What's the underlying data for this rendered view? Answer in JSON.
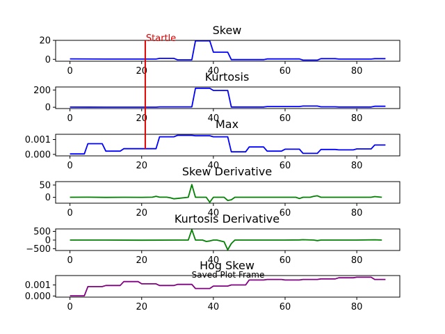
{
  "footer_text": "Saved Plot Frame",
  "colors": {
    "blue": "#0000ff",
    "green": "#008000",
    "purple": "#800080",
    "marker": "#e00000"
  },
  "chart_data": [
    {
      "type": "line",
      "title": "Skew",
      "color": "#0000ff",
      "xlim": [
        -4,
        92
      ],
      "ylim": [
        -2,
        20
      ],
      "xticks": [
        0,
        20,
        40,
        60,
        80
      ],
      "xtick_labels": [
        "0",
        "20",
        "40",
        "60",
        "80"
      ],
      "yticks": [
        0,
        20
      ],
      "ytick_labels": [
        "0",
        "20"
      ],
      "marker_line": {
        "x": 21,
        "label": "Startle"
      },
      "x": [
        0,
        10,
        20,
        24,
        25,
        29,
        30,
        34,
        35,
        39,
        40,
        44,
        45,
        54,
        55,
        64,
        65,
        69,
        70,
        74,
        75,
        84,
        85,
        88
      ],
      "values": [
        0.5,
        0.3,
        0.3,
        0.3,
        1.0,
        1.0,
        -0.5,
        -0.5,
        19.5,
        19.5,
        7.5,
        7.5,
        -0.3,
        -0.3,
        0.4,
        0.4,
        -0.8,
        -0.8,
        0.7,
        0.7,
        0.3,
        0.3,
        0.7,
        0.7
      ]
    },
    {
      "type": "line",
      "title": "Kurtosis",
      "color": "#0000ff",
      "xlim": [
        -4,
        92
      ],
      "ylim": [
        -15,
        235
      ],
      "xticks": [
        0,
        20,
        40,
        60,
        80
      ],
      "xtick_labels": [
        "0",
        "20",
        "40",
        "60",
        "80"
      ],
      "yticks": [
        0,
        200
      ],
      "ytick_labels": [
        "0",
        "200"
      ],
      "marker_line": {
        "x": 21,
        "label": ""
      },
      "x": [
        0,
        10,
        20,
        24,
        25,
        34,
        35,
        39,
        40,
        44,
        45,
        54,
        55,
        64,
        65,
        69,
        70,
        74,
        75,
        84,
        85,
        88
      ],
      "values": [
        2,
        1,
        1,
        1,
        4,
        4,
        220,
        220,
        195,
        195,
        3,
        3,
        8,
        8,
        14,
        14,
        5,
        5,
        3,
        3,
        12,
        12
      ]
    },
    {
      "type": "line",
      "title": "Max",
      "color": "#0000ff",
      "xlim": [
        -4,
        92
      ],
      "ylim": [
        -0.0001,
        0.00135
      ],
      "xticks": [
        0,
        20,
        40,
        60,
        80
      ],
      "xtick_labels": [
        "0",
        "20",
        "40",
        "60",
        "80"
      ],
      "yticks": [
        0,
        0.001
      ],
      "ytick_labels": [
        "0.000",
        "0.001"
      ],
      "marker_line": {
        "x": 21,
        "label": ""
      },
      "x": [
        0,
        4,
        5,
        9,
        10,
        14,
        15,
        24,
        25,
        29,
        30,
        34,
        35,
        39,
        40,
        44,
        45,
        49,
        50,
        54,
        55,
        59,
        60,
        64,
        65,
        69,
        70,
        74,
        75,
        79,
        80,
        84,
        85,
        88
      ],
      "values": [
        3e-05,
        3e-05,
        0.00072,
        0.00072,
        0.00022,
        0.00022,
        0.00038,
        0.00038,
        0.00118,
        0.00118,
        0.00128,
        0.00128,
        0.00125,
        0.00125,
        0.00118,
        0.00118,
        0.00017,
        0.00017,
        0.0005,
        0.0005,
        0.00022,
        0.00022,
        0.00035,
        0.00035,
        7e-05,
        7e-05,
        0.00033,
        0.00033,
        0.0003,
        0.0003,
        0.00037,
        0.00037,
        0.00063,
        0.00063
      ]
    },
    {
      "type": "line",
      "title": "Skew Derivative",
      "color": "#008000",
      "xlim": [
        -4,
        92
      ],
      "ylim": [
        -24,
        64
      ],
      "xticks": [
        0,
        20,
        40,
        60,
        80
      ],
      "xtick_labels": [
        "0",
        "20",
        "40",
        "60",
        "80"
      ],
      "yticks": [
        0,
        50
      ],
      "ytick_labels": [
        "0",
        "50"
      ],
      "marker_line": null,
      "x": [
        0,
        5,
        10,
        15,
        20,
        23,
        24,
        25,
        27,
        28,
        29,
        33,
        34,
        35,
        36,
        38,
        39,
        40,
        41,
        43,
        44,
        45,
        46,
        50,
        55,
        60,
        63,
        64,
        65,
        67,
        68,
        69,
        70,
        75,
        80,
        84,
        85,
        87
      ],
      "values": [
        0,
        0.3,
        -0.3,
        0.2,
        -0.2,
        0.5,
        4,
        0.5,
        0.5,
        -2,
        -6,
        0,
        52,
        0,
        0,
        0,
        -20,
        0,
        0,
        0,
        -13,
        -10,
        0,
        0,
        0,
        0,
        0,
        -5,
        0,
        0,
        4,
        6,
        0,
        0,
        0,
        0,
        3,
        0
      ]
    },
    {
      "type": "line",
      "title": "Kurtosis Derivative",
      "color": "#008000",
      "xlim": [
        -4,
        92
      ],
      "ylim": [
        -600,
        640
      ],
      "xticks": [
        0,
        20,
        40,
        60,
        80
      ],
      "xtick_labels": [
        "0",
        "20",
        "40",
        "60",
        "80"
      ],
      "yticks": [
        -500,
        0,
        500
      ],
      "ytick_labels": [
        "−500",
        "0",
        "500"
      ],
      "marker_line": null,
      "x": [
        0,
        10,
        20,
        30,
        33,
        34,
        35,
        37,
        38,
        39,
        40,
        41,
        43,
        44,
        45,
        46,
        50,
        55,
        60,
        64,
        65,
        68,
        69,
        70,
        75,
        80,
        85,
        87
      ],
      "values": [
        0,
        0,
        -8,
        0,
        0,
        600,
        0,
        0,
        -80,
        -50,
        0,
        0,
        -100,
        -560,
        -200,
        0,
        0,
        0,
        0,
        10,
        20,
        0,
        -30,
        0,
        0,
        0,
        15,
        0
      ]
    },
    {
      "type": "line",
      "title": "Hog Skew",
      "color": "#800080",
      "xlim": [
        -4,
        92
      ],
      "ylim": [
        -0.0001,
        0.00185
      ],
      "xticks": [
        0,
        20,
        40,
        60,
        80
      ],
      "xtick_labels": [
        "0",
        "20",
        "40",
        "60",
        "80"
      ],
      "yticks": [
        0,
        0.001
      ],
      "ytick_labels": [
        "0.000",
        "0.001"
      ],
      "marker_line": null,
      "x": [
        0,
        4,
        5,
        9,
        10,
        14,
        15,
        19,
        20,
        24,
        25,
        29,
        30,
        34,
        35,
        39,
        40,
        44,
        45,
        49,
        50,
        54,
        55,
        59,
        60,
        64,
        65,
        69,
        70,
        74,
        75,
        79,
        80,
        84,
        85,
        88
      ],
      "values": [
        2e-05,
        2e-05,
        0.00085,
        0.00085,
        0.00095,
        0.00095,
        0.0013,
        0.0013,
        0.0011,
        0.0011,
        0.00095,
        0.00095,
        0.00105,
        0.00105,
        0.00068,
        0.00068,
        0.0009,
        0.0009,
        0.001,
        0.001,
        0.00145,
        0.00145,
        0.0015,
        0.0015,
        0.00145,
        0.00145,
        0.0015,
        0.0015,
        0.00155,
        0.00155,
        0.00165,
        0.00165,
        0.0017,
        0.0017,
        0.0015,
        0.0015
      ]
    }
  ]
}
